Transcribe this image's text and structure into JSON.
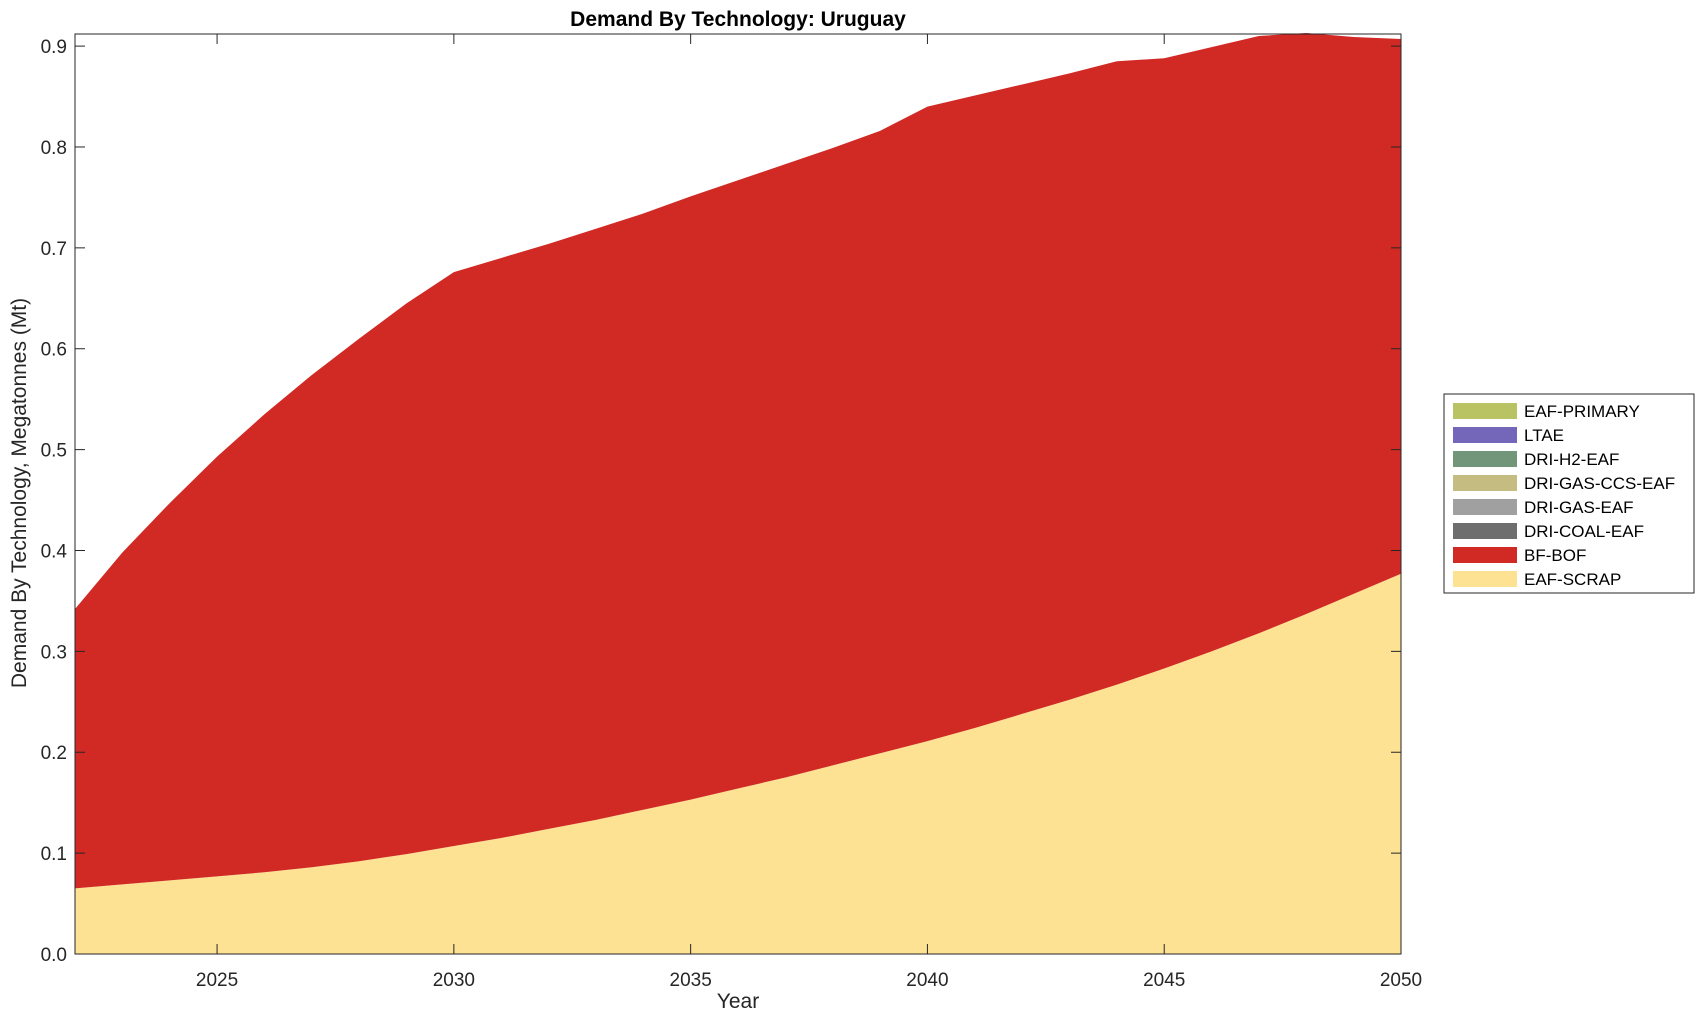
{
  "chart_data": {
    "type": "area",
    "title": "Demand By Technology: Uruguay",
    "xlabel": "Year",
    "ylabel": "Demand By Technology, Megatonnes (Mt)",
    "xlim": [
      2022,
      2050
    ],
    "ylim": [
      0,
      0.912
    ],
    "xticks": [
      "2025",
      "2030",
      "2035",
      "2040",
      "2045",
      "2050"
    ],
    "yticks": [
      "0.0",
      "0.1",
      "0.2",
      "0.3",
      "0.4",
      "0.5",
      "0.6",
      "0.7",
      "0.8",
      "0.9"
    ],
    "grid": false,
    "stacked": true,
    "legend_position": "right",
    "x": [
      2022,
      2023,
      2024,
      2025,
      2026,
      2027,
      2028,
      2029,
      2030,
      2031,
      2032,
      2033,
      2034,
      2035,
      2036,
      2037,
      2038,
      2039,
      2040,
      2041,
      2042,
      2043,
      2044,
      2045,
      2046,
      2047,
      2048,
      2049,
      2050
    ],
    "series": [
      {
        "name": "EAF-SCRAP",
        "color": "#FDE293",
        "values": [
          0.065,
          0.069,
          0.073,
          0.077,
          0.081,
          0.086,
          0.092,
          0.099,
          0.107,
          0.115,
          0.124,
          0.133,
          0.143,
          0.153,
          0.164,
          0.175,
          0.187,
          0.199,
          0.211,
          0.224,
          0.238,
          0.252,
          0.267,
          0.283,
          0.3,
          0.318,
          0.337,
          0.357,
          0.377
        ]
      },
      {
        "name": "BF-BOF",
        "color": "#D12A25",
        "values": [
          0.277,
          0.329,
          0.374,
          0.416,
          0.454,
          0.488,
          0.518,
          0.546,
          0.569,
          0.575,
          0.58,
          0.586,
          0.591,
          0.598,
          0.603,
          0.608,
          0.612,
          0.617,
          0.629,
          0.627,
          0.624,
          0.621,
          0.618,
          0.605,
          0.599,
          0.592,
          0.576,
          0.552,
          0.53
        ]
      },
      {
        "name": "DRI-COAL-EAF",
        "color": "#6E6E6E",
        "values": [
          0,
          0,
          0,
          0,
          0,
          0,
          0,
          0,
          0,
          0,
          0,
          0,
          0,
          0,
          0,
          0,
          0,
          0,
          0,
          0,
          0,
          0,
          0,
          0,
          0,
          0,
          0,
          0,
          0
        ]
      },
      {
        "name": "DRI-GAS-EAF",
        "color": "#A0A0A0",
        "values": [
          0,
          0,
          0,
          0,
          0,
          0,
          0,
          0,
          0,
          0,
          0,
          0,
          0,
          0,
          0,
          0,
          0,
          0,
          0,
          0,
          0,
          0,
          0,
          0,
          0,
          0,
          0,
          0,
          0
        ]
      },
      {
        "name": "DRI-GAS-CCS-EAF",
        "color": "#C4BC80",
        "values": [
          0,
          0,
          0,
          0,
          0,
          0,
          0,
          0,
          0,
          0,
          0,
          0,
          0,
          0,
          0,
          0,
          0,
          0,
          0,
          0,
          0,
          0,
          0,
          0,
          0,
          0,
          0,
          0,
          0
        ]
      },
      {
        "name": "DRI-H2-EAF",
        "color": "#72967A",
        "values": [
          0,
          0,
          0,
          0,
          0,
          0,
          0,
          0,
          0,
          0,
          0,
          0,
          0,
          0,
          0,
          0,
          0,
          0,
          0,
          0,
          0,
          0,
          0,
          0,
          0,
          0,
          0,
          0,
          0
        ]
      },
      {
        "name": "LTAE",
        "color": "#7467B9",
        "values": [
          0,
          0,
          0,
          0,
          0,
          0,
          0,
          0,
          0,
          0,
          0,
          0,
          0,
          0,
          0,
          0,
          0,
          0,
          0,
          0,
          0,
          0,
          0,
          0,
          0,
          0,
          0,
          0,
          0
        ]
      },
      {
        "name": "EAF-PRIMARY",
        "color": "#B9C364",
        "values": [
          0,
          0,
          0,
          0,
          0,
          0,
          0,
          0,
          0,
          0,
          0,
          0,
          0,
          0,
          0,
          0,
          0,
          0,
          0,
          0,
          0,
          0,
          0,
          0,
          0,
          0,
          0,
          0,
          0
        ]
      }
    ],
    "legend": [
      "EAF-PRIMARY",
      "LTAE",
      "DRI-H2-EAF",
      "DRI-GAS-CCS-EAF",
      "DRI-GAS-EAF",
      "DRI-COAL-EAF",
      "BF-BOF",
      "EAF-SCRAP"
    ]
  }
}
